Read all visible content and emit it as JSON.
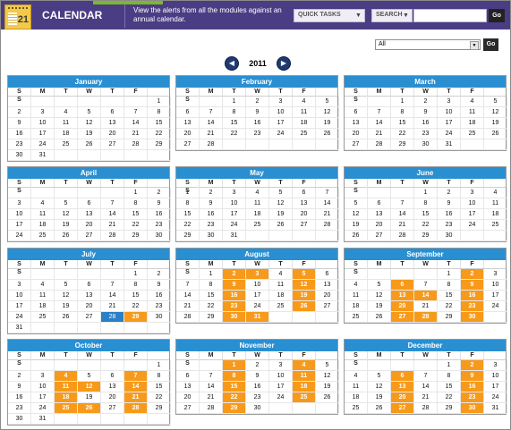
{
  "header": {
    "app_title": "CALENDAR",
    "icon_number": "21",
    "description": "View the alerts from all the modules against an annual calendar.",
    "quick_tasks_label": "QUICK TASKS",
    "search_label": "SEARCH",
    "search_value": "",
    "go_label": "Go",
    "accent": "#4b3d84"
  },
  "filter": {
    "selected": "All",
    "go_label": "Go"
  },
  "year": "2011",
  "weekdays": [
    "S",
    "M",
    "T",
    "W",
    "T",
    "F",
    "S"
  ],
  "months": [
    {
      "name": "January",
      "start": 6,
      "days": 31,
      "alerts": []
    },
    {
      "name": "February",
      "start": 2,
      "days": 28,
      "alerts": []
    },
    {
      "name": "March",
      "start": 2,
      "days": 31,
      "alerts": []
    },
    {
      "name": "April",
      "start": 5,
      "days": 30,
      "alerts": []
    },
    {
      "name": "May",
      "start": 0,
      "days": 31,
      "alerts": []
    },
    {
      "name": "June",
      "start": 3,
      "days": 30,
      "alerts": []
    },
    {
      "name": "July",
      "start": 5,
      "days": 31,
      "alerts": [
        29
      ],
      "today": 28
    },
    {
      "name": "August",
      "start": 1,
      "days": 31,
      "alerts": [
        2,
        3,
        5,
        9,
        12,
        16,
        19,
        23,
        26,
        30,
        31
      ]
    },
    {
      "name": "September",
      "start": 4,
      "days": 30,
      "alerts": [
        2,
        6,
        9,
        13,
        14,
        16,
        20,
        23,
        27,
        28,
        30
      ]
    },
    {
      "name": "October",
      "start": 6,
      "days": 31,
      "alerts": [
        4,
        7,
        11,
        12,
        14,
        18,
        21,
        25,
        26,
        28
      ]
    },
    {
      "name": "November",
      "start": 2,
      "days": 30,
      "alerts": [
        1,
        4,
        8,
        11,
        15,
        18,
        22,
        25,
        29
      ]
    },
    {
      "name": "December",
      "start": 4,
      "days": 31,
      "alerts": [
        2,
        6,
        9,
        13,
        16,
        20,
        23,
        27,
        30
      ]
    }
  ]
}
